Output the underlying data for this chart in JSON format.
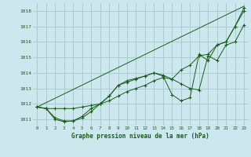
{
  "title": "Graphe pression niveau de la mer (hPa)",
  "bg_color": "#cce8ee",
  "grid_color": "#aacccc",
  "line_color": "#1a5c1a",
  "xlim": [
    -0.5,
    23.5
  ],
  "ylim": [
    1010.6,
    1018.5
  ],
  "xticks": [
    0,
    1,
    2,
    3,
    4,
    5,
    6,
    7,
    8,
    9,
    10,
    11,
    12,
    13,
    14,
    15,
    16,
    17,
    18,
    19,
    20,
    21,
    22,
    23
  ],
  "yticks": [
    1011,
    1012,
    1013,
    1014,
    1015,
    1016,
    1017,
    1018
  ],
  "series": [
    {
      "x": [
        0,
        1,
        2,
        3,
        4,
        5,
        6,
        7,
        8,
        9,
        10,
        11,
        12,
        13,
        14,
        15,
        16,
        17,
        18,
        19,
        20,
        21,
        22,
        23
      ],
      "y": [
        1011.8,
        1011.7,
        1011.7,
        1011.7,
        1011.7,
        1011.8,
        1011.9,
        1012.0,
        1012.2,
        1012.5,
        1012.8,
        1013.0,
        1013.2,
        1013.5,
        1013.7,
        1013.6,
        1014.2,
        1014.5,
        1015.1,
        1015.2,
        1015.8,
        1016.0,
        1017.0,
        1018.0
      ],
      "markers": true
    },
    {
      "x": [
        0,
        1,
        2,
        3,
        4,
        5,
        6,
        7,
        8,
        9,
        10,
        11,
        12,
        13,
        14,
        15,
        16,
        17,
        18,
        19,
        20,
        21,
        22,
        23
      ],
      "y": [
        1011.8,
        1011.7,
        1011.1,
        1010.9,
        1010.9,
        1011.1,
        1011.5,
        1012.0,
        1012.5,
        1013.2,
        1013.4,
        1013.6,
        1013.8,
        1014.0,
        1013.8,
        1012.6,
        1012.2,
        1012.4,
        1015.2,
        1014.8,
        1015.8,
        1016.0,
        1017.0,
        1018.2
      ],
      "markers": true
    },
    {
      "x": [
        0,
        1,
        2,
        3,
        4,
        5,
        6,
        7,
        8,
        9,
        10,
        11,
        12,
        13,
        14,
        15,
        16,
        17,
        18,
        19,
        20,
        21,
        22,
        23
      ],
      "y": [
        1011.8,
        1011.7,
        1011.0,
        1010.85,
        1010.9,
        1011.2,
        1011.7,
        1012.0,
        1012.5,
        1013.2,
        1013.5,
        1013.65,
        1013.8,
        1014.0,
        1013.85,
        1013.6,
        1013.3,
        1013.0,
        1012.9,
        1015.1,
        1014.8,
        1015.8,
        1016.0,
        1017.1
      ],
      "markers": true
    },
    {
      "x": [
        0,
        23
      ],
      "y": [
        1011.8,
        1018.3
      ],
      "markers": false
    }
  ]
}
